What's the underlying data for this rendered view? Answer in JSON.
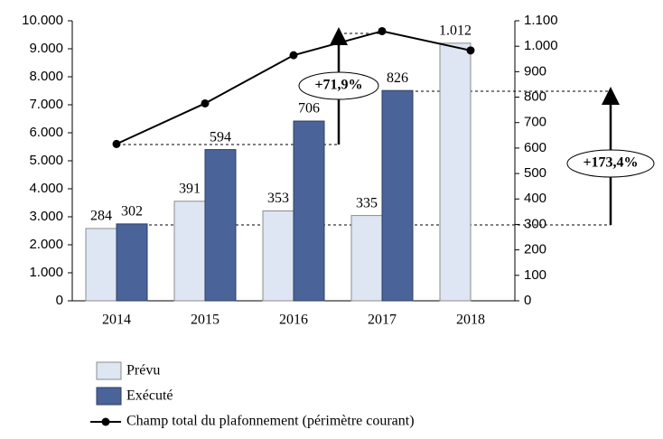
{
  "chart_data": {
    "type": "bar",
    "categories": [
      "2014",
      "2015",
      "2016",
      "2017",
      "2018"
    ],
    "series": [
      {
        "name": "Prévu",
        "color": "#dde6f2",
        "axis": "y2",
        "values": [
          284,
          391,
          353,
          335,
          1012
        ],
        "value_labels": [
          "284",
          "391",
          "353",
          "335",
          "1.012"
        ]
      },
      {
        "name": "Exécuté",
        "color": "#4a6398",
        "axis": "y2",
        "values": [
          302,
          594,
          706,
          826,
          null
        ]
      },
      {
        "name": "Champ total du plafonnement (périmètre courant)",
        "color": "#000000",
        "type": "line",
        "values": [
          5600,
          7050,
          8770,
          9630,
          8940
        ]
      }
    ],
    "ylim": [
      0,
      10000
    ],
    "yticks": [
      0,
      {
        "value": 1000,
        "label": "1.000"
      },
      {
        "value": 2000,
        "label": "2.000"
      },
      {
        "value": 3000,
        "label": "3.000"
      },
      {
        "value": 4000,
        "label": "4.000"
      },
      {
        "value": 5000,
        "label": "5.000"
      },
      {
        "value": 6000,
        "label": "6.000"
      },
      {
        "value": 7000,
        "label": "7.000"
      },
      {
        "value": 8000,
        "label": "8.000"
      },
      {
        "value": 9000,
        "label": "9.000"
      },
      {
        "value": 10000,
        "label": "10.000"
      }
    ],
    "y2lim": [
      0,
      1100
    ],
    "y2ticks": [
      0,
      100,
      200,
      300,
      400,
      500,
      600,
      700,
      800,
      900,
      {
        "value": 1000,
        "label": "1.000"
      },
      {
        "value": 1100,
        "label": "1.100"
      }
    ],
    "annotations": [
      "+71,9%",
      "+173,4%"
    ]
  }
}
